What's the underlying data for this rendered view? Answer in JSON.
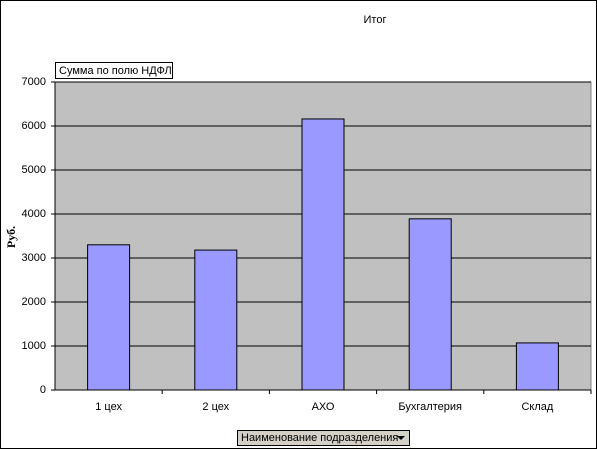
{
  "chart_data": {
    "type": "bar",
    "title": "Итог",
    "ylabel": "Руб.",
    "data_field": "Сумма по полю НДФЛ",
    "category_field": "Наименование подразделения",
    "categories": [
      "1 цех",
      "2 цех",
      "АХО",
      "Бухгалтерия",
      "Склад"
    ],
    "values": [
      3300,
      3180,
      6160,
      3890,
      1070
    ],
    "color": "#9999ff",
    "plot_color": "#c0c0c0",
    "ylim": [
      0,
      7000
    ],
    "yticks": [
      0,
      1000,
      2000,
      3000,
      4000,
      5000,
      6000,
      7000
    ],
    "grid": true
  }
}
